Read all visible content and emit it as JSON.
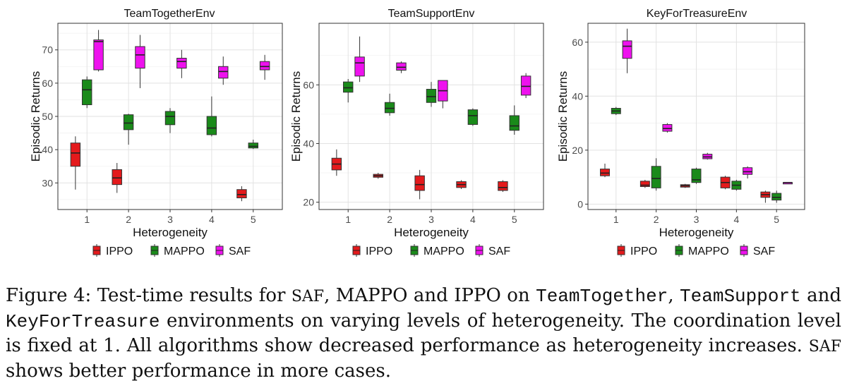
{
  "chart_data": [
    {
      "type": "box",
      "title": "TeamTogetherEnv",
      "xlabel": "Heterogeneity",
      "ylabel": "Episodic Returns",
      "categories": [
        "1",
        "2",
        "3",
        "4",
        "5"
      ],
      "ylim": [
        22,
        78
      ],
      "yticks": [
        30,
        40,
        50,
        60,
        70
      ],
      "legend": [
        "IPPO",
        "MAPPO",
        "SAF"
      ],
      "series": [
        {
          "name": "IPPO",
          "color": "#e41a1c",
          "boxes": [
            {
              "x": "1",
              "min": 28,
              "q1": 35,
              "median": 39,
              "q3": 42,
              "max": 44
            },
            {
              "x": "2",
              "min": 27,
              "q1": 29.5,
              "median": 31.5,
              "q3": 34,
              "max": 36
            },
            null,
            null,
            {
              "x": "5",
              "min": 24.5,
              "q1": 25.5,
              "median": 26.5,
              "q3": 28,
              "max": 29
            }
          ]
        },
        {
          "name": "MAPPO",
          "color": "#1a8a1a",
          "boxes": [
            {
              "x": "1",
              "min": 52.5,
              "q1": 53.5,
              "median": 58,
              "q3": 61,
              "max": 62
            },
            {
              "x": "2",
              "min": 41.5,
              "q1": 46,
              "median": 48,
              "q3": 50.5,
              "max": 50.8
            },
            {
              "x": "3",
              "min": 45,
              "q1": 47.5,
              "median": 50,
              "q3": 51.5,
              "max": 52.5
            },
            {
              "x": "4",
              "min": 44,
              "q1": 44.5,
              "median": 46.5,
              "q3": 50,
              "max": 56
            },
            {
              "x": "5",
              "min": 40.2,
              "q1": 40.5,
              "median": 41,
              "q3": 42,
              "max": 43
            }
          ]
        },
        {
          "name": "SAF",
          "color": "#ee11ee",
          "boxes": [
            {
              "x": "1",
              "min": 63.5,
              "q1": 64,
              "median": 72.5,
              "q3": 73,
              "max": 76
            },
            {
              "x": "2",
              "min": 58.5,
              "q1": 64.5,
              "median": 68.5,
              "q3": 71,
              "max": 74.5
            },
            {
              "x": "3",
              "min": 61.5,
              "q1": 64.5,
              "median": 66.5,
              "q3": 67.5,
              "max": 70
            },
            {
              "x": "4",
              "min": 59.5,
              "q1": 61.5,
              "median": 63.5,
              "q3": 65,
              "max": 68
            },
            {
              "x": "5",
              "min": 61,
              "q1": 64,
              "median": 65,
              "q3": 66.5,
              "max": 68.5
            }
          ]
        }
      ]
    },
    {
      "type": "box",
      "title": "TeamSupportEnv",
      "xlabel": "Heterogeneity",
      "ylabel": "Episodic Returns",
      "categories": [
        "1",
        "2",
        "3",
        "4",
        "5"
      ],
      "ylim": [
        17.5,
        81
      ],
      "yticks": [
        20,
        40,
        60
      ],
      "legend": [
        "IPPO",
        "MAPPO",
        "SAF"
      ],
      "series": [
        {
          "name": "IPPO",
          "color": "#e41a1c",
          "boxes": [
            {
              "x": "1",
              "min": 29,
              "q1": 31,
              "median": 33,
              "q3": 35,
              "max": 38
            },
            {
              "x": "2",
              "min": 28,
              "q1": 28.5,
              "median": 29,
              "q3": 29.5,
              "max": 30
            },
            {
              "x": "3",
              "min": 21,
              "q1": 24,
              "median": 26,
              "q3": 29,
              "max": 31
            },
            {
              "x": "4",
              "min": 24.5,
              "q1": 25,
              "median": 26,
              "q3": 27,
              "max": 27.5
            },
            {
              "x": "5",
              "min": 23.5,
              "q1": 24,
              "median": 25,
              "q3": 27,
              "max": 27.5
            }
          ]
        },
        {
          "name": "MAPPO",
          "color": "#1a8a1a",
          "boxes": [
            {
              "x": "1",
              "min": 54,
              "q1": 57.5,
              "median": 59,
              "q3": 61,
              "max": 62
            },
            {
              "x": "2",
              "min": 49.5,
              "q1": 50.5,
              "median": 52,
              "q3": 54,
              "max": 57
            },
            {
              "x": "3",
              "min": 52.5,
              "q1": 54,
              "median": 56,
              "q3": 58.5,
              "max": 61
            },
            {
              "x": "4",
              "min": 46,
              "q1": 46.5,
              "median": 49.5,
              "q3": 51.5,
              "max": 52
            },
            {
              "x": "5",
              "min": 43,
              "q1": 44.5,
              "median": 46,
              "q3": 49.5,
              "max": 53
            }
          ]
        },
        {
          "name": "SAF",
          "color": "#ee11ee",
          "boxes": [
            {
              "x": "1",
              "min": 61,
              "q1": 63,
              "median": 67.5,
              "q3": 69.5,
              "max": 76.5
            },
            {
              "x": "2",
              "min": 64,
              "q1": 65,
              "median": 66,
              "q3": 67.5,
              "max": 68
            },
            {
              "x": "3",
              "min": 52,
              "q1": 54.5,
              "median": 58,
              "q3": 61.5,
              "max": 61.5
            },
            null,
            {
              "x": "5",
              "min": 55.5,
              "q1": 56.5,
              "median": 59.5,
              "q3": 63,
              "max": 64
            }
          ]
        }
      ]
    },
    {
      "type": "box",
      "title": "KeyForTreasureEnv",
      "xlabel": "Heterogeneity",
      "ylabel": "Episodic Returns",
      "categories": [
        "1",
        "2",
        "3",
        "4",
        "5"
      ],
      "ylim": [
        -2,
        67
      ],
      "yticks": [
        0,
        20,
        40,
        60
      ],
      "legend": [
        "IPPO",
        "MAPPO",
        "SAF"
      ],
      "series": [
        {
          "name": "IPPO",
          "color": "#e41a1c",
          "boxes": [
            {
              "x": "1",
              "min": 10,
              "q1": 10.5,
              "median": 11.5,
              "q3": 13,
              "max": 15
            },
            {
              "x": "2",
              "min": 6,
              "q1": 6.5,
              "median": 7,
              "q3": 8.5,
              "max": 9
            },
            {
              "x": "3",
              "min": 6,
              "q1": 6.3,
              "median": 6.8,
              "q3": 7.2,
              "max": 7.5
            },
            {
              "x": "4",
              "min": 5.5,
              "q1": 6,
              "median": 8,
              "q3": 10,
              "max": 10.5
            },
            {
              "x": "5",
              "min": 0.5,
              "q1": 2.5,
              "median": 3.5,
              "q3": 4.5,
              "max": 5
            }
          ]
        },
        {
          "name": "MAPPO",
          "color": "#1a8a1a",
          "boxes": [
            {
              "x": "1",
              "min": 33,
              "q1": 33.5,
              "median": 34.5,
              "q3": 35.5,
              "max": 36
            },
            {
              "x": "2",
              "min": 5,
              "q1": 6,
              "median": 9.5,
              "q3": 14,
              "max": 17
            },
            {
              "x": "3",
              "min": 7.5,
              "q1": 8,
              "median": 9,
              "q3": 13,
              "max": 13.5
            },
            {
              "x": "4",
              "min": 5,
              "q1": 5.5,
              "median": 7,
              "q3": 8.5,
              "max": 9
            },
            {
              "x": "5",
              "min": 0.5,
              "q1": 1.5,
              "median": 2.5,
              "q3": 4,
              "max": 5
            }
          ]
        },
        {
          "name": "SAF",
          "color": "#ee11ee",
          "boxes": [
            {
              "x": "1",
              "min": 48.5,
              "q1": 54,
              "median": 58.5,
              "q3": 60.5,
              "max": 65
            },
            {
              "x": "2",
              "min": 26.5,
              "q1": 27,
              "median": 28,
              "q3": 29.5,
              "max": 30
            },
            {
              "x": "3",
              "min": 16.5,
              "q1": 16.8,
              "median": 17.5,
              "q3": 18.5,
              "max": 19
            },
            {
              "x": "4",
              "min": 9.5,
              "q1": 11,
              "median": 12,
              "q3": 13.5,
              "max": 14
            },
            {
              "x": "5",
              "min": 8,
              "q1": 8,
              "median": 8,
              "q3": 8,
              "max": 8
            }
          ]
        }
      ]
    }
  ],
  "caption": {
    "prefix": "Figure 4: Test-time results for ",
    "saf": "SAF",
    "part2": ", MAPPO and IPPO on ",
    "env1": "TeamTogether",
    "sep1": ", ",
    "env2": "TeamSupport",
    "part3": " and ",
    "env3": "KeyForTreasure",
    "part4": " environments on varying levels of heterogeneity. The coordination level is fixed at 1. All algorithms show decreased performance as heterogeneity increases. ",
    "saf2": "SAF",
    "part5": " shows better performance in more cases."
  }
}
